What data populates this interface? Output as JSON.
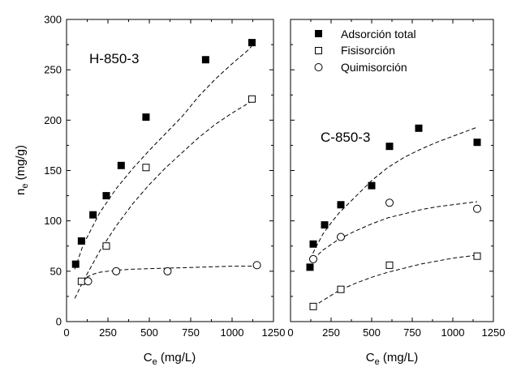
{
  "chart_data": [
    {
      "type": "scatter",
      "panel_label": "H-850-3",
      "xlabel": "C",
      "xlabel_sub": "e",
      "xlabel_unit": " (mg/L)",
      "ylabel": "n",
      "ylabel_sub": "e",
      "ylabel_unit": " (mg/g)",
      "xlim": [
        0,
        1250
      ],
      "ylim": [
        0,
        300
      ],
      "xticks": [
        "0",
        "250",
        "500",
        "750",
        "1000",
        "1250"
      ],
      "yticks": [
        "0",
        "50",
        "100",
        "150",
        "200",
        "250",
        "300"
      ],
      "grid": false,
      "series": [
        {
          "marker": "filled-square",
          "x": [
            55,
            90,
            160,
            240,
            330,
            480,
            840,
            1120
          ],
          "y": [
            57,
            80,
            106,
            125,
            155,
            203,
            260,
            277
          ],
          "fit": {
            "x": [
              50,
              100,
              200,
              300,
              400,
              500,
              600,
              700,
              800,
              900,
              1000,
              1100,
              1120
            ],
            "y": [
              52,
              76,
              108,
              132,
              152,
              170,
              187,
              204,
              224,
              241,
              256,
              270,
              274
            ]
          }
        },
        {
          "marker": "open-square",
          "x": [
            90,
            240,
            480,
            1120
          ],
          "y": [
            40,
            75,
            153,
            221
          ]
        },
        {
          "marker": "open-circle",
          "x": [
            130,
            300,
            610,
            1150
          ],
          "y": [
            40,
            50,
            50,
            56
          ]
        }
      ],
      "fits": [
        {
          "for": "Fisisorción",
          "x": [
            50,
            100,
            200,
            300,
            400,
            500,
            600,
            700,
            800,
            900,
            1000,
            1100,
            1120
          ],
          "y": [
            23,
            40,
            70,
            95,
            117,
            136,
            153,
            168,
            183,
            196,
            207,
            217,
            219
          ]
        },
        {
          "for": "Quimisorción",
          "x": [
            90,
            120,
            160,
            200,
            300,
            400,
            600,
            800,
            1000,
            1150
          ],
          "y": [
            40,
            44,
            47,
            49,
            51,
            52,
            53,
            54,
            55,
            55
          ]
        }
      ]
    },
    {
      "type": "scatter",
      "panel_label": "C-850-3",
      "xlabel": "C",
      "xlabel_sub": "e",
      "xlabel_unit": " (mg/L)",
      "xlim": [
        0,
        1250
      ],
      "ylim": [
        0,
        300
      ],
      "xticks": [
        "0",
        "250",
        "500",
        "750",
        "1000",
        "1250"
      ],
      "grid": false,
      "legend_position": "top-left",
      "series": [
        {
          "name": "Adsorción total",
          "marker": "filled-square",
          "x": [
            120,
            140,
            210,
            310,
            500,
            610,
            790,
            1150
          ],
          "y": [
            54,
            77,
            96,
            116,
            135,
            174,
            192,
            178
          ]
        },
        {
          "name": "Fisisorción",
          "marker": "open-square",
          "x": [
            140,
            310,
            610,
            1150
          ],
          "y": [
            15,
            32,
            56,
            65
          ]
        },
        {
          "name": "Quimisorción",
          "marker": "open-circle",
          "x": [
            140,
            310,
            610,
            1150
          ],
          "y": [
            62,
            84,
            118,
            112
          ]
        }
      ],
      "fits": [
        {
          "for": "Adsorción total",
          "x": [
            120,
            160,
            200,
            250,
            300,
            400,
            500,
            600,
            700,
            800,
            900,
            1000,
            1100,
            1150
          ],
          "y": [
            62,
            75,
            87,
            98,
            108,
            124,
            140,
            153,
            163,
            171,
            178,
            184,
            190,
            193
          ]
        },
        {
          "for": "Fisisorción",
          "x": [
            140,
            200,
            300,
            400,
            500,
            600,
            700,
            800,
            900,
            1000,
            1100,
            1150
          ],
          "y": [
            15,
            21,
            31,
            38,
            44,
            49,
            53,
            57,
            60,
            63,
            65,
            66
          ]
        },
        {
          "for": "Quimisorción",
          "x": [
            140,
            200,
            300,
            400,
            500,
            600,
            700,
            800,
            900,
            1000,
            1100,
            1150
          ],
          "y": [
            62,
            71,
            82,
            90,
            97,
            103,
            107,
            111,
            114,
            116,
            118,
            119
          ]
        }
      ]
    }
  ]
}
